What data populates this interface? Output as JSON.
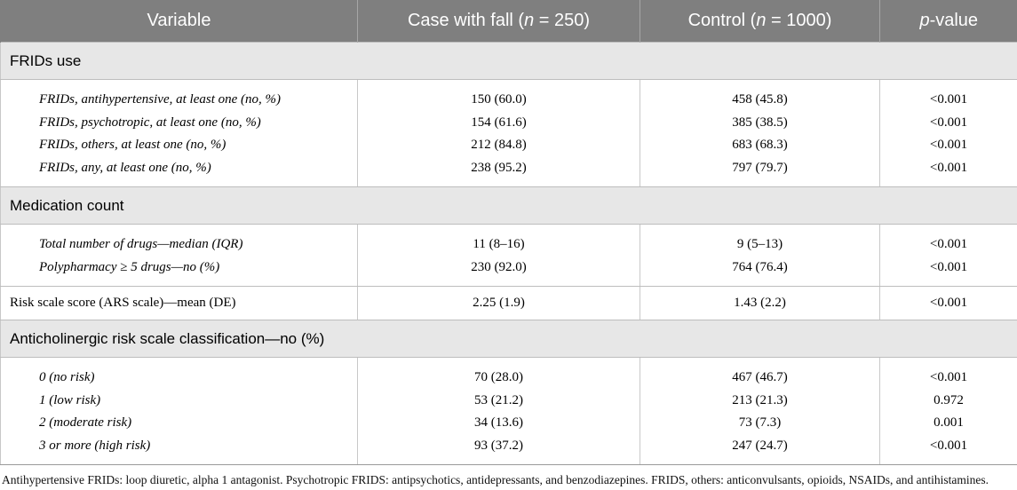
{
  "header": {
    "variable": "Variable",
    "case_prefix": "Case with fall (",
    "case_n": "n",
    "case_suffix": " = 250)",
    "control_prefix": "Control (",
    "control_n": "n",
    "control_suffix": " = 1000)",
    "p_italic": "p",
    "p_suffix": "-value"
  },
  "sections": [
    {
      "title": "FRIDs use",
      "rows": [
        {
          "variable": "FRIDs, antihypertensive, at least one (no, %)",
          "case": "150 (60.0)",
          "control": "458 (45.8)",
          "p": "<0.001"
        },
        {
          "variable": "FRIDs, psychotropic, at least one (no, %)",
          "case": "154 (61.6)",
          "control": "385 (38.5)",
          "p": "<0.001"
        },
        {
          "variable": "FRIDs, others, at least one (no, %)",
          "case": "212 (84.8)",
          "control": "683 (68.3)",
          "p": "<0.001"
        },
        {
          "variable": "FRIDs, any, at least one (no, %)",
          "case": "238 (95.2)",
          "control": "797 (79.7)",
          "p": "<0.001"
        }
      ]
    },
    {
      "title": "Medication count",
      "rows": [
        {
          "variable": "Total number of drugs—median (IQR)",
          "case": "11 (8–16)",
          "control": "9 (5–13)",
          "p": "<0.001"
        },
        {
          "variable": "Polypharmacy ≥ 5 drugs—no (%)",
          "case": "230 (92.0)",
          "control": "764 (76.4)",
          "p": "<0.001"
        }
      ]
    },
    {
      "title": "Anticholinergic risk scale classification—no (%)",
      "rows": [
        {
          "variable": "0 (no risk)",
          "case": "70 (28.0)",
          "control": "467 (46.7)",
          "p": "<0.001"
        },
        {
          "variable": "1 (low risk)",
          "case": "53 (21.2)",
          "control": "213 (21.3)",
          "p": "0.972"
        },
        {
          "variable": "2 (moderate risk)",
          "case": "34 (13.6)",
          "control": "73 (7.3)",
          "p": "0.001"
        },
        {
          "variable": "3 or more (high risk)",
          "case": "93 (37.2)",
          "control": "247 (24.7)",
          "p": "<0.001"
        }
      ]
    }
  ],
  "standalone_row": {
    "variable": "Risk scale score (ARS scale)—mean (DE)",
    "case": "2.25 (1.9)",
    "control": "1.43 (2.2)",
    "p": "<0.001"
  },
  "footnote": "Antihypertensive FRIDs: loop diuretic, alpha 1 antagonist. Psychotropic FRIDS: antipsychotics, antidepressants, and benzodiazepines. FRIDS, others: anticonvulsants, opioids, NSAIDs, and antihistamines."
}
